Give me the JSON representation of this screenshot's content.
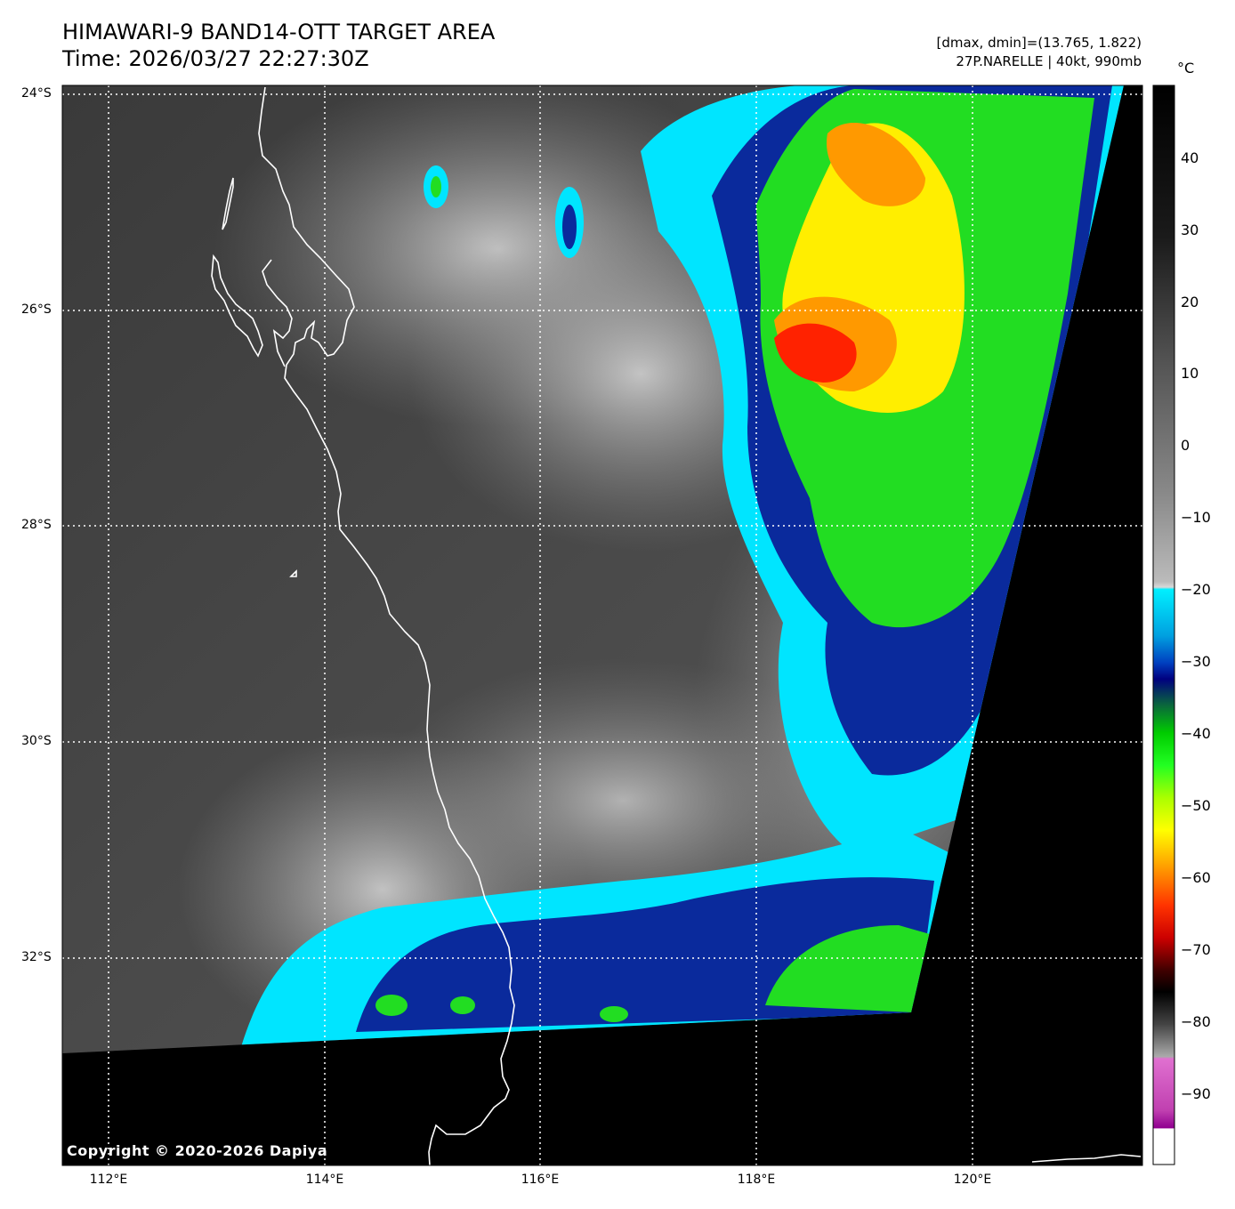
{
  "header": {
    "title_line1": "HIMAWARI-9 BAND14-OTT TARGET AREA",
    "title_line2": "Time: 2026/03/27 22:27:30Z",
    "dmax_dmin": "[dmax, dmin]=(13.765, 1.822)",
    "storm_info": "27P.NARELLE | 40kt, 990mb"
  },
  "colorbar": {
    "unit": "°C",
    "ticks": [
      "40",
      "30",
      "20",
      "10",
      "0",
      "−10",
      "−20",
      "−30",
      "−40",
      "−50",
      "−60",
      "−70",
      "−80",
      "−90"
    ]
  },
  "axes": {
    "lat_labels": [
      "24°S",
      "26°S",
      "28°S",
      "30°S",
      "32°S"
    ],
    "lon_labels": [
      "112°E",
      "114°E",
      "116°E",
      "118°E",
      "120°E"
    ]
  },
  "copyright": "Copyright © 2020-2026 Dapiya",
  "colors": {
    "background": "#ffffff",
    "no_data": "#000000",
    "coastline": "#ffffff",
    "gridline": "#ffffff",
    "convection_cyan": "#00e5ff",
    "convection_blue": "#0a2a9c",
    "convection_green": "#22dd22",
    "convection_yellow": "#ffee00",
    "convection_orange": "#ff9900",
    "convection_red": "#ff2200",
    "cold_magenta": "#c040b0"
  }
}
